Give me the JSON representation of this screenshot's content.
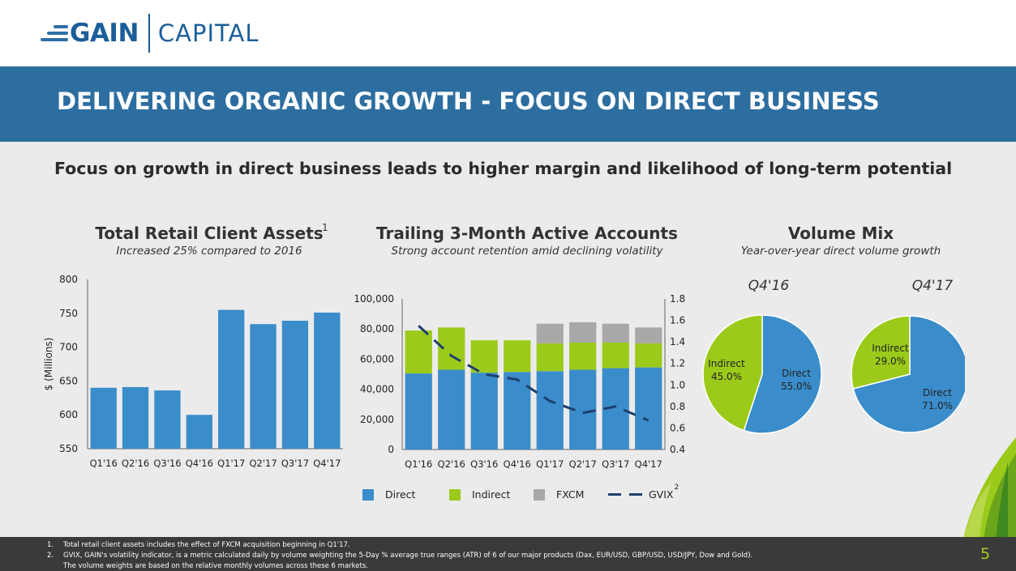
{
  "logo": {
    "gain": "GAIN",
    "capital": "CAPITAL"
  },
  "header": {
    "title": "DELIVERING ORGANIC GROWTH - FOCUS ON DIRECT BUSINESS"
  },
  "subtitle": "Focus on growth in direct business leads to higher margin and likelihood of long-term potential",
  "colors": {
    "direct": "#3a8dca",
    "indirect": "#9cca1a",
    "fxcm": "#a8a8a8",
    "gvix": "#1f3f6d",
    "banner": "#2d6ea0",
    "accent_green": "#a5cc1d"
  },
  "panels": {
    "assets": {
      "title": "Total Retail Client Assets",
      "sup": "1",
      "subtitle": "Increased 25% compared to 2016"
    },
    "accounts": {
      "title": "Trailing 3-Month Active Accounts",
      "subtitle": "Strong account retention amid declining volatility"
    },
    "mix": {
      "title": "Volume Mix",
      "subtitle": "Year-over-year direct volume growth"
    }
  },
  "chart_data": [
    {
      "type": "bar",
      "title": "Total Retail Client Assets",
      "ylabel": "$ (Millions)",
      "ylim": [
        550,
        800
      ],
      "yticks": [
        "550",
        "600",
        "650",
        "700",
        "750",
        "800"
      ],
      "categories": [
        "Q1'16",
        "Q2'16",
        "Q3'16",
        "Q4'16",
        "Q1'17",
        "Q2'17",
        "Q3'17",
        "Q4'17"
      ],
      "values": [
        640,
        641,
        636,
        600,
        755,
        734,
        739,
        751
      ]
    },
    {
      "type": "bar",
      "stacked": true,
      "title": "Trailing 3-Month Active Accounts",
      "categories": [
        "Q1'16",
        "Q2'16",
        "Q3'16",
        "Q4'16",
        "Q1'17",
        "Q2'17",
        "Q3'17",
        "Q4'17"
      ],
      "ylim": [
        0,
        100000
      ],
      "yticks": [
        "0",
        "20,000",
        "40,000",
        "60,000",
        "80,000",
        "100,000"
      ],
      "y2lim": [
        0.4,
        1.8
      ],
      "y2ticks": [
        "0.4",
        "0.6",
        "0.8",
        "1.0",
        "1.2",
        "1.4",
        "1.6",
        "1.8"
      ],
      "series": [
        {
          "name": "Direct",
          "values": [
            50500,
            53000,
            51000,
            51500,
            52000,
            53000,
            54000,
            54500
          ]
        },
        {
          "name": "Indirect",
          "values": [
            28500,
            28000,
            21500,
            21000,
            18500,
            18000,
            17000,
            16000
          ]
        },
        {
          "name": "FXCM",
          "values": [
            0,
            0,
            0,
            0,
            13000,
            13500,
            12500,
            10500
          ]
        }
      ],
      "line": {
        "name": "GVIX",
        "sup": "2",
        "axis": "right",
        "values": [
          1.55,
          1.27,
          1.1,
          1.05,
          0.85,
          0.74,
          0.8,
          0.67
        ]
      }
    },
    {
      "type": "pie",
      "title": "Q4'16",
      "labels": [
        "Direct",
        "Indirect"
      ],
      "values": [
        55.0,
        45.0
      ],
      "value_labels": [
        "55.0%",
        "45.0%"
      ]
    },
    {
      "type": "pie",
      "title": "Q4'17",
      "labels": [
        "Direct",
        "Indirect"
      ],
      "values": [
        71.0,
        29.0
      ],
      "value_labels": [
        "71.0%",
        "29.0%"
      ]
    }
  ],
  "footnotes": [
    {
      "num": "1.",
      "text": "Total retail client assets includes the effect of FXCM acquisition beginning in Q1'17."
    },
    {
      "num": "2.",
      "text": "GVIX, GAIN's volatility indicator, is a metric calculated daily by volume weighting the 5-Day % average true ranges (ATR) of 6 of our major products (Dax, EUR/USD, GBP/USD, USD/JPY, Dow and Gold)."
    },
    {
      "num": "",
      "text": "The volume weights are based on the relative monthly volumes across these 6 markets."
    }
  ],
  "page_number": "5"
}
